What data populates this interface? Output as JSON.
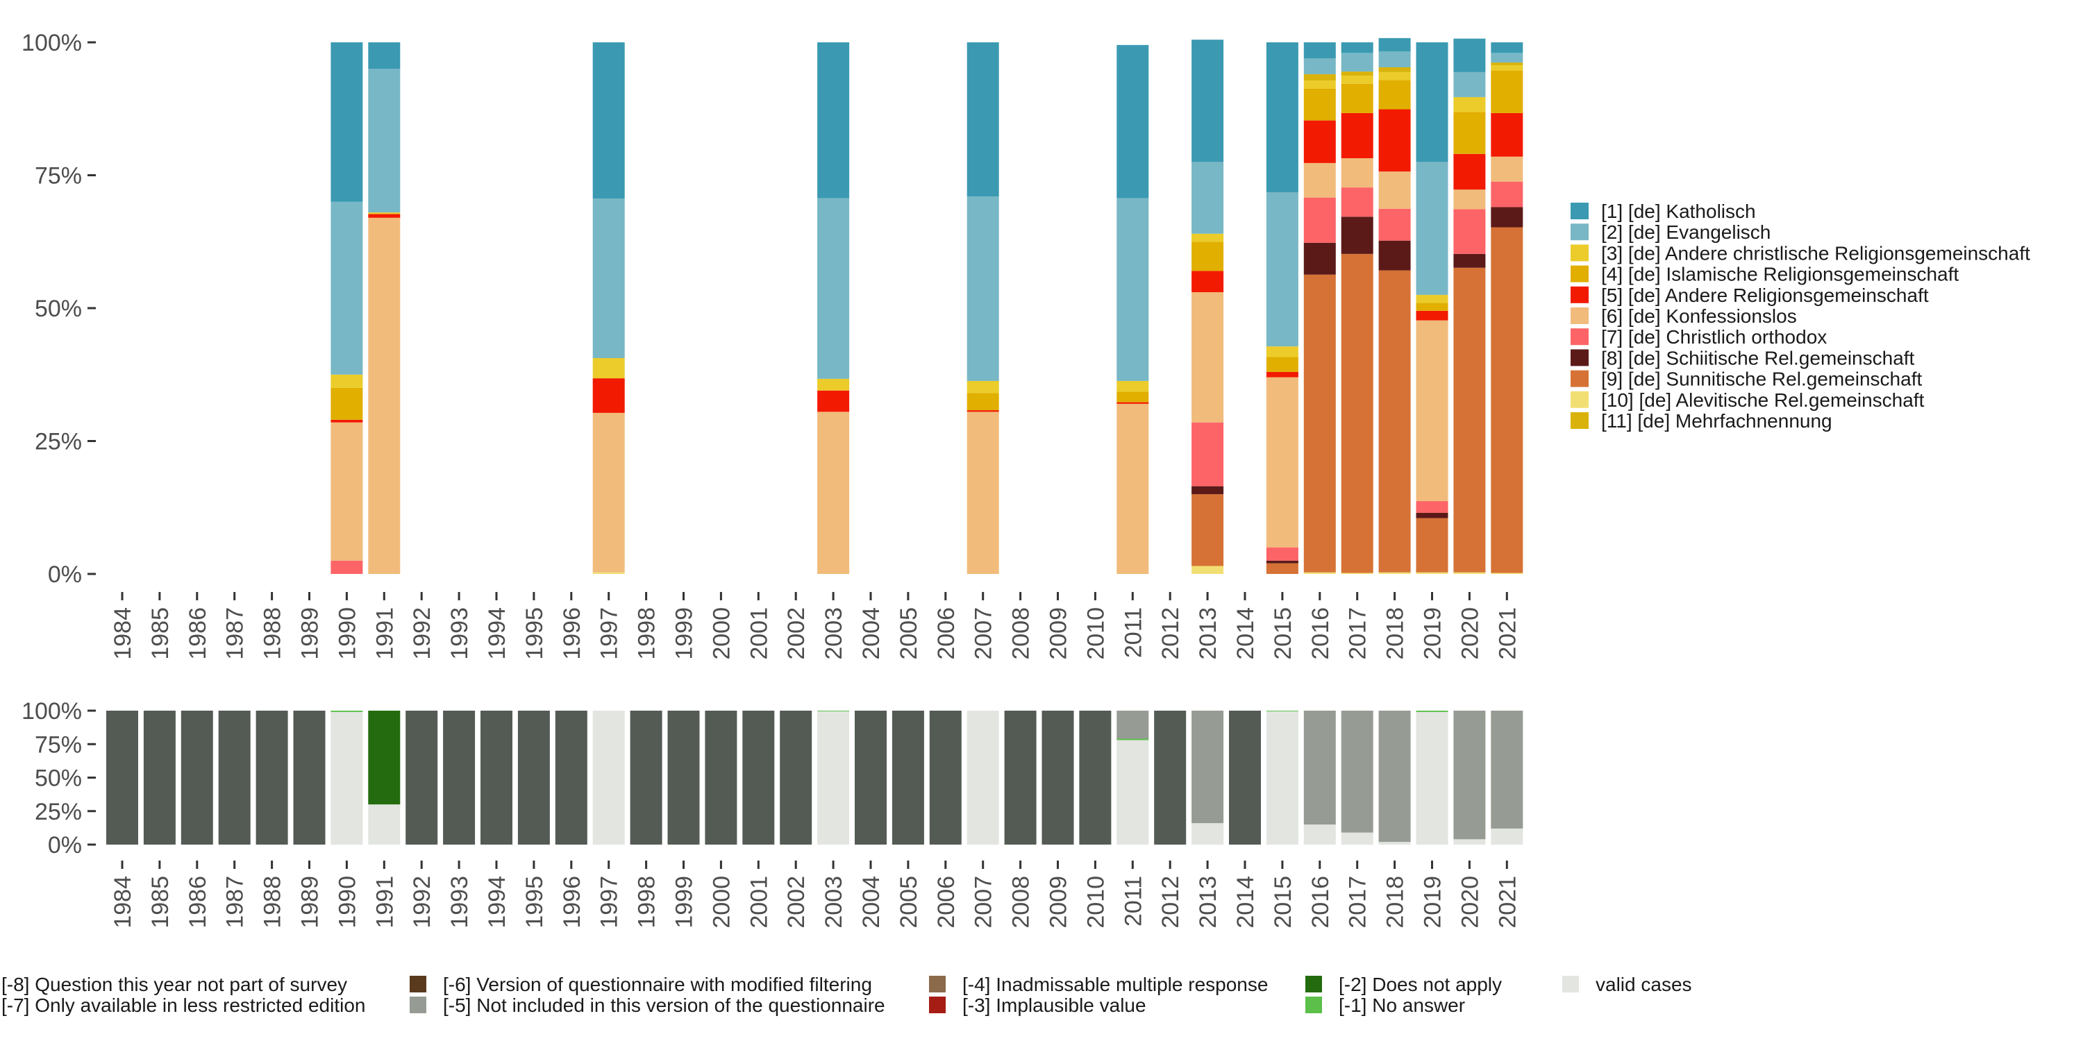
{
  "chart_data": [
    {
      "type": "bar",
      "stacked": true,
      "ylim": [
        0,
        100
      ],
      "y_ticks": [
        "0%",
        "25%",
        "50%",
        "75%",
        "100%"
      ],
      "grid": false,
      "legend_position": "right",
      "categories": [
        "1984",
        "1985",
        "1986",
        "1987",
        "1988",
        "1989",
        "1990",
        "1991",
        "1992",
        "1993",
        "1994",
        "1995",
        "1996",
        "1997",
        "1998",
        "1999",
        "2000",
        "2001",
        "2002",
        "2003",
        "2004",
        "2005",
        "2006",
        "2007",
        "2008",
        "2009",
        "2010",
        "2011",
        "2012",
        "2013",
        "2014",
        "2015",
        "2016",
        "2017",
        "2018",
        "2019",
        "2020",
        "2021"
      ],
      "series": [
        {
          "name": "[10] [de] Alevitische Rel.gemeinschaft",
          "color": "#f2df74",
          "values": {
            "1997": 0.3,
            "2013": 1.5,
            "2016": 0.3,
            "2017": 0.2,
            "2018": 0.3,
            "2019": 0.3,
            "2020": 0.3,
            "2021": 0.2
          }
        },
        {
          "name": "[9] [de] Sunnitische Rel.gemeinschaft",
          "color": "#d67236",
          "values": {
            "2013": 13.5,
            "2015": 2,
            "2016": 56,
            "2017": 60,
            "2018": 56.8,
            "2019": 10.2,
            "2020": 57.3,
            "2021": 65
          }
        },
        {
          "name": "[8] [de] Schiitische Rel.gemeinschaft",
          "color": "#5b1a18",
          "values": {
            "2013": 1.5,
            "2015": 0.5,
            "2016": 6,
            "2017": 7,
            "2018": 5.6,
            "2019": 1,
            "2020": 2.6,
            "2021": 3.8
          }
        },
        {
          "name": "[7] [de] Christlich orthodox",
          "color": "#fd6467",
          "values": {
            "1990": 2.5,
            "2013": 12,
            "2015": 2.5,
            "2016": 8.5,
            "2017": 5.5,
            "2018": 6,
            "2019": 2.2,
            "2020": 8.4,
            "2021": 4.8
          }
        },
        {
          "name": "[6] [de] Konfessionslos",
          "color": "#f1bb7b",
          "values": {
            "1990": 26,
            "1991": 67,
            "1997": 30,
            "2003": 30.5,
            "2007": 30.5,
            "2011": 32,
            "2013": 24.5,
            "2015": 32,
            "2016": 6.5,
            "2017": 5.5,
            "2018": 7,
            "2019": 34,
            "2020": 3.7,
            "2021": 4.7
          }
        },
        {
          "name": "[5] [de] Andere Religionsgemeinschaft",
          "color": "#f21a00",
          "values": {
            "1990": 0.5,
            "1991": 0.7,
            "1997": 6.5,
            "2003": 4,
            "2007": 0.3,
            "2011": 0.3,
            "2013": 4,
            "2015": 1,
            "2016": 8,
            "2017": 8.5,
            "2018": 11.7,
            "2019": 1.8,
            "2020": 6.7,
            "2021": 8.2
          }
        },
        {
          "name": "[4] [de] Islamische Religionsgemeinschaft",
          "color": "#e1af00",
          "values": {
            "1990": 6,
            "2007": 3.2,
            "2011": 2,
            "2013": 5.5,
            "2015": 2.8,
            "2016": 6,
            "2017": 5.5,
            "2018": 5.5,
            "2019": 1.5,
            "2020": 7.9,
            "2021": 8
          }
        },
        {
          "name": "[3] [de] Andere christlische Religionsgemeinschaft",
          "color": "#ebcc2a",
          "values": {
            "1990": 2.5,
            "1991": 0.3,
            "1997": 3.8,
            "2003": 2.2,
            "2007": 2.3,
            "2011": 2,
            "2013": 1.5,
            "2015": 2,
            "2016": 1.5,
            "2017": 1.5,
            "2018": 1.5,
            "2019": 1.5,
            "2020": 2.8,
            "2021": 1
          }
        },
        {
          "name": "[11] [de] Mehrfachnennung",
          "color": "#d9b30b",
          "values": {
            "2016": 1.2,
            "2017": 0.8,
            "2018": 0.9,
            "2021": 0.5
          }
        },
        {
          "name": "[2] [de] Evangelisch",
          "color": "#78b7c5",
          "values": {
            "1990": 32.5,
            "1991": 27,
            "1997": 30,
            "2003": 34,
            "2007": 34.7,
            "2011": 34.4,
            "2013": 13.5,
            "2015": 29,
            "2016": 3,
            "2017": 3.5,
            "2018": 3,
            "2019": 25,
            "2020": 4.7,
            "2021": 1.8
          }
        },
        {
          "name": "[1] [de] Katholisch",
          "color": "#3b9ab2",
          "values": {
            "1990": 30,
            "1991": 5,
            "1997": 29.4,
            "2003": 29.3,
            "2007": 29,
            "2011": 28.8,
            "2013": 23,
            "2015": 28.2,
            "2016": 3,
            "2017": 2,
            "2018": 2.5,
            "2019": 22.5,
            "2020": 6.3,
            "2021": 2
          }
        }
      ],
      "legend": [
        {
          "label": "[1] [de] Katholisch",
          "color": "#3b9ab2"
        },
        {
          "label": "[2] [de] Evangelisch",
          "color": "#78b7c5"
        },
        {
          "label": "[3] [de] Andere christlische Religionsgemeinschaft",
          "color": "#ebcc2a"
        },
        {
          "label": "[4] [de] Islamische Religionsgemeinschaft",
          "color": "#e1af00"
        },
        {
          "label": "[5] [de] Andere Religionsgemeinschaft",
          "color": "#f21a00"
        },
        {
          "label": "[6] [de] Konfessionslos",
          "color": "#f1bb7b"
        },
        {
          "label": "[7] [de] Christlich orthodox",
          "color": "#fd6467"
        },
        {
          "label": "[8] [de] Schiitische Rel.gemeinschaft",
          "color": "#5b1a18"
        },
        {
          "label": "[9] [de] Sunnitische Rel.gemeinschaft",
          "color": "#d67236"
        },
        {
          "label": "[10] [de] Alevitische Rel.gemeinschaft",
          "color": "#f2df74"
        },
        {
          "label": "[11] [de] Mehrfachnennung",
          "color": "#d9b30b"
        }
      ]
    },
    {
      "type": "bar",
      "stacked": true,
      "ylim": [
        0,
        100
      ],
      "y_ticks": [
        "0%",
        "25%",
        "50%",
        "75%",
        "100%"
      ],
      "grid": false,
      "legend_position": "bottom",
      "categories": [
        "1984",
        "1985",
        "1986",
        "1987",
        "1988",
        "1989",
        "1990",
        "1991",
        "1992",
        "1993",
        "1994",
        "1995",
        "1996",
        "1997",
        "1998",
        "1999",
        "2000",
        "2001",
        "2002",
        "2003",
        "2004",
        "2005",
        "2006",
        "2007",
        "2008",
        "2009",
        "2010",
        "2011",
        "2012",
        "2013",
        "2014",
        "2015",
        "2016",
        "2017",
        "2018",
        "2019",
        "2020",
        "2021"
      ],
      "series": [
        {
          "name": "valid cases",
          "color": "#e2e5e0",
          "values": {
            "1990": 99,
            "1991": 30,
            "1997": 100,
            "2003": 99.5,
            "2007": 100,
            "2011": 78,
            "2013": 16,
            "2015": 99.5,
            "2016": 15,
            "2017": 9,
            "2018": 2,
            "2019": 99,
            "2020": 4,
            "2021": 12
          }
        },
        {
          "name": "[-1] No answer",
          "color": "#5bbf4a",
          "values": {
            "1990": 1,
            "2003": 0.5,
            "2011": 1,
            "2015": 0.5,
            "2019": 1
          }
        },
        {
          "name": "[-2] Does not apply",
          "color": "#236b0e",
          "values": {
            "1991": 70
          }
        },
        {
          "name": "[-5] Not included in this version of the questionnaire",
          "color": "#969c93",
          "values": {
            "2011": 21,
            "2013": 84,
            "2016": 85,
            "2017": 91,
            "2018": 98,
            "2020": 96,
            "2021": 88
          }
        },
        {
          "name": "[-8] Question this year not part of survey",
          "color": "#545b55",
          "values": {
            "1984": 100,
            "1985": 100,
            "1986": 100,
            "1987": 100,
            "1988": 100,
            "1989": 100,
            "1992": 100,
            "1993": 100,
            "1994": 100,
            "1995": 100,
            "1996": 100,
            "1998": 100,
            "1999": 100,
            "2000": 100,
            "2001": 100,
            "2002": 100,
            "2004": 100,
            "2005": 100,
            "2006": 100,
            "2008": 100,
            "2009": 100,
            "2010": 100,
            "2012": 100,
            "2014": 100
          }
        }
      ],
      "legend": [
        {
          "label": "[-8] Question this year not part of survey",
          "color": "#545b55"
        },
        {
          "label": "[-7] Only available in less restricted edition",
          "color": "#545b55"
        },
        {
          "label": "[-6] Version of questionnaire with modified filtering",
          "color": "#5a3a1c"
        },
        {
          "label": "[-5] Not included in this version of the questionnaire",
          "color": "#969c93"
        },
        {
          "label": "[-4] Inadmissable multiple response",
          "color": "#8a6a4a"
        },
        {
          "label": "[-3] Implausible value",
          "color": "#a51d14"
        },
        {
          "label": "[-2] Does not apply",
          "color": "#236b0e"
        },
        {
          "label": "[-1] No answer",
          "color": "#5bbf4a"
        },
        {
          "label": "valid cases",
          "color": "#e2e5e0"
        }
      ]
    }
  ]
}
